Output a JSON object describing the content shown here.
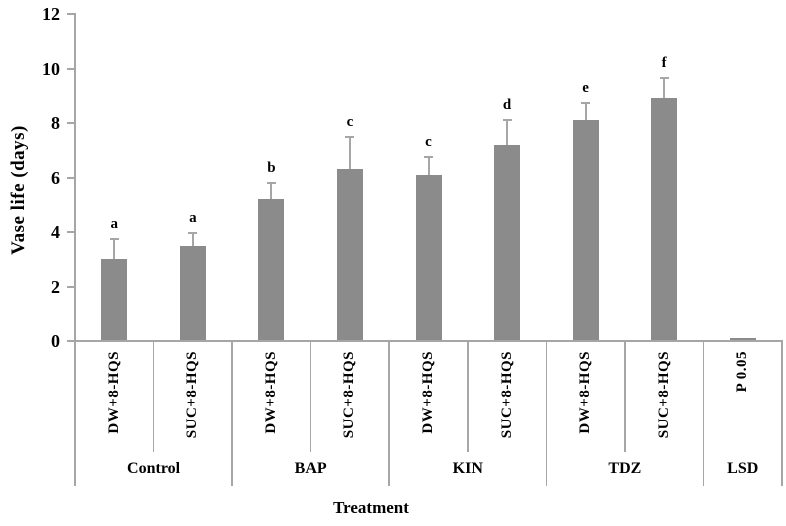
{
  "chart_data": {
    "type": "bar",
    "title": "",
    "ylabel": "Vase life (days)",
    "xlabel": "Treatment",
    "ylim": [
      0,
      12
    ],
    "yticks": [
      0,
      2,
      4,
      6,
      8,
      10,
      12
    ],
    "grid": false,
    "legend": null,
    "bar_color": "#8b8b8b",
    "error_color": "#a6a6a6",
    "axis_color": "#a6a6a6",
    "groups": [
      {
        "label": "Control",
        "bars": [
          {
            "label": "DW+8-HQS",
            "value": 3.0,
            "error": 0.75,
            "letter": "a"
          },
          {
            "label": "SUC+8-HQS",
            "value": 3.5,
            "error": 0.45,
            "letter": "a"
          }
        ]
      },
      {
        "label": "BAP",
        "bars": [
          {
            "label": "DW+8-HQS",
            "value": 5.2,
            "error": 0.6,
            "letter": "b"
          },
          {
            "label": "SUC+8-HQS",
            "value": 6.3,
            "error": 1.2,
            "letter": "c"
          }
        ]
      },
      {
        "label": "KIN",
        "bars": [
          {
            "label": "DW+8-HQS",
            "value": 6.1,
            "error": 0.65,
            "letter": "c"
          },
          {
            "label": "SUC+8-HQS",
            "value": 7.2,
            "error": 0.9,
            "letter": "d"
          }
        ]
      },
      {
        "label": "TDZ",
        "bars": [
          {
            "label": "DW+8-HQS",
            "value": 8.1,
            "error": 0.65,
            "letter": "e"
          },
          {
            "label": "SUC+8-HQS",
            "value": 8.9,
            "error": 0.75,
            "letter": "f"
          }
        ]
      },
      {
        "label": "LSD",
        "bars": [
          {
            "label": "P 0.05",
            "value": 0.1,
            "error": 0,
            "letter": ""
          }
        ]
      }
    ]
  }
}
